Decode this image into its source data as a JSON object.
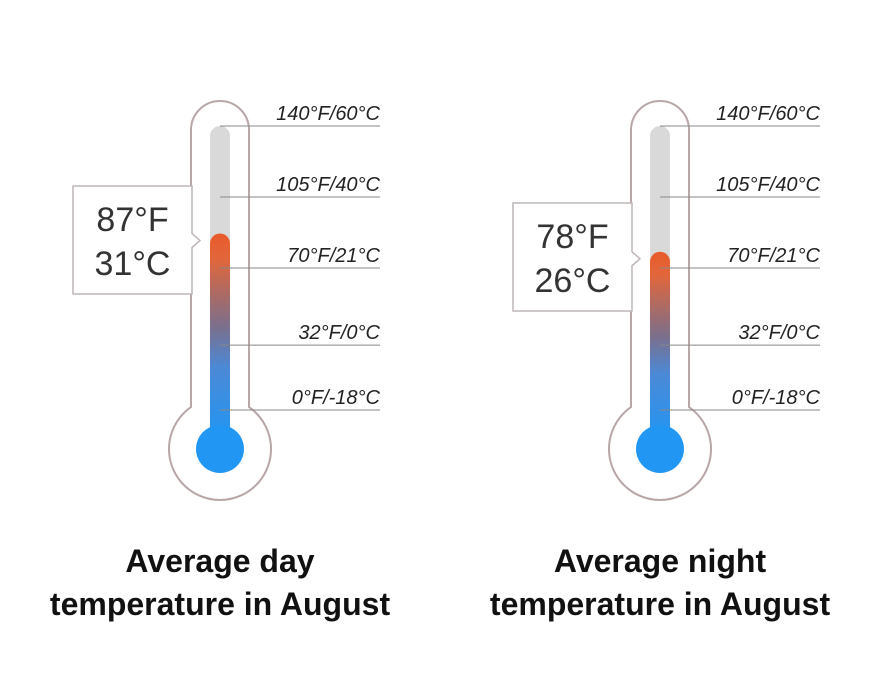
{
  "chart_data": [
    {
      "type": "thermometer",
      "title_lines": [
        "Average day",
        "temperature in August"
      ],
      "value_f": 87,
      "value_c": 31,
      "value_labels": [
        "87°F",
        "31°C"
      ],
      "scale_min_f": -8,
      "scale_max_f": 140,
      "ticks": [
        {
          "f": 140,
          "label": "140°F/60°C"
        },
        {
          "f": 105,
          "label": "105°F/40°C"
        },
        {
          "f": 70,
          "label": "70°F/21°C"
        },
        {
          "f": 32,
          "label": "32°F/0°C"
        },
        {
          "f": 0,
          "label": "0°F/-18°C"
        }
      ]
    },
    {
      "type": "thermometer",
      "title_lines": [
        "Average night",
        "temperature in August"
      ],
      "value_f": 78,
      "value_c": 26,
      "value_labels": [
        "78°F",
        "26°C"
      ],
      "scale_min_f": -8,
      "scale_max_f": 140,
      "ticks": [
        {
          "f": 140,
          "label": "140°F/60°C"
        },
        {
          "f": 105,
          "label": "105°F/40°C"
        },
        {
          "f": 70,
          "label": "70°F/21°C"
        },
        {
          "f": 32,
          "label": "32°F/0°C"
        },
        {
          "f": 0,
          "label": "0°F/-18°C"
        }
      ]
    }
  ],
  "colors": {
    "outline": "#b9a6a6",
    "tube_empty": "#d9d9d9",
    "hot": "#e85a2b",
    "cold": "#2196f3",
    "tick_line": "#888888",
    "callout_border": "#bfb6b6"
  }
}
